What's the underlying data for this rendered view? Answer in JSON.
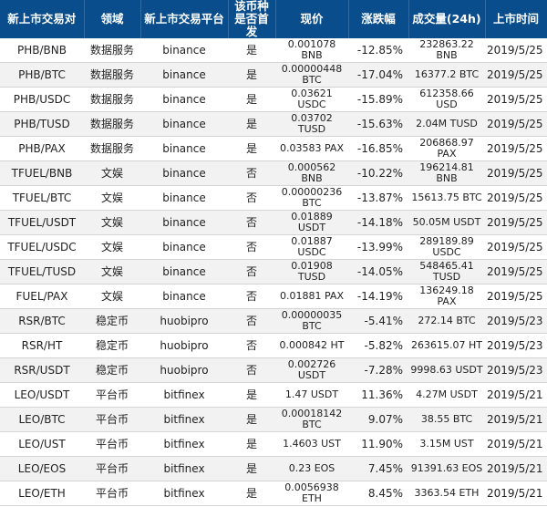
{
  "headers": {
    "pair": "新上市交易对",
    "domain": "领域",
    "platform": "新上市交易平台",
    "first": "该币种是否首发",
    "price": "现价",
    "change": "涨跌幅",
    "volume": "成交量(24h)",
    "date": "上市时间"
  },
  "rows": [
    {
      "pair": "PHB/BNB",
      "domain": "数据服务",
      "platform": "binance",
      "first": "是",
      "price": "0.001078 BNB",
      "change": "-12.85%",
      "volume": "232863.22 BNB",
      "date": "2019/5/25"
    },
    {
      "pair": "PHB/BTC",
      "domain": "数据服务",
      "platform": "binance",
      "first": "是",
      "price": "0.00000448 BTC",
      "change": "-17.04%",
      "volume": "16377.2 BTC",
      "date": "2019/5/25"
    },
    {
      "pair": "PHB/USDC",
      "domain": "数据服务",
      "platform": "binance",
      "first": "是",
      "price": "0.03621 USDC",
      "change": "-15.89%",
      "volume": "612358.66 USD",
      "date": "2019/5/25"
    },
    {
      "pair": "PHB/TUSD",
      "domain": "数据服务",
      "platform": "binance",
      "first": "是",
      "price": "0.03702 TUSD",
      "change": "-15.63%",
      "volume": "2.04M TUSD",
      "date": "2019/5/25"
    },
    {
      "pair": "PHB/PAX",
      "domain": "数据服务",
      "platform": "binance",
      "first": "是",
      "price": "0.03583 PAX",
      "change": "-16.85%",
      "volume": "206868.97 PAX",
      "date": "2019/5/25"
    },
    {
      "pair": "TFUEL/BNB",
      "domain": "文娱",
      "platform": "binance",
      "first": "否",
      "price": "0.000562 BNB",
      "change": "-10.22%",
      "volume": "196214.81 BNB",
      "date": "2019/5/25"
    },
    {
      "pair": "TFUEL/BTC",
      "domain": "文娱",
      "platform": "binance",
      "first": "否",
      "price": "0.00000236 BTC",
      "change": "-13.87%",
      "volume": "15613.75 BTC",
      "date": "2019/5/25"
    },
    {
      "pair": "TFUEL/USDT",
      "domain": "文娱",
      "platform": "binance",
      "first": "否",
      "price": "0.01889 USDT",
      "change": "-14.18%",
      "volume": "50.05M USDT",
      "date": "2019/5/25"
    },
    {
      "pair": "TFUEL/USDC",
      "domain": "文娱",
      "platform": "binance",
      "first": "否",
      "price": "0.01887 USDC",
      "change": "-13.99%",
      "volume": "289189.89 USDC",
      "date": "2019/5/25"
    },
    {
      "pair": "TFUEL/TUSD",
      "domain": "文娱",
      "platform": "binance",
      "first": "否",
      "price": "0.01908 TUSD",
      "change": "-14.05%",
      "volume": "548465.41 TUSD",
      "date": "2019/5/25"
    },
    {
      "pair": "FUEL/PAX",
      "domain": "文娱",
      "platform": "binance",
      "first": "否",
      "price": "0.01881 PAX",
      "change": "-14.19%",
      "volume": "136249.18 PAX",
      "date": "2019/5/25"
    },
    {
      "pair": "RSR/BTC",
      "domain": "稳定币",
      "platform": "huobipro",
      "first": "否",
      "price": "0.00000035 BTC",
      "change": "-5.41%",
      "volume": "272.14 BTC",
      "date": "2019/5/23"
    },
    {
      "pair": "RSR/HT",
      "domain": "稳定币",
      "platform": "huobipro",
      "first": "否",
      "price": "0.000842 HT",
      "change": "-5.82%",
      "volume": "263615.07 HT",
      "date": "2019/5/23"
    },
    {
      "pair": "RSR/USDT",
      "domain": "稳定币",
      "platform": "huobipro",
      "first": "否",
      "price": "0.002726 USDT",
      "change": "-7.28%",
      "volume": "9998.63 USDT",
      "date": "2019/5/23"
    },
    {
      "pair": "LEO/USDT",
      "domain": "平台币",
      "platform": "bitfinex",
      "first": "是",
      "price": "1.47 USDT",
      "change": "11.36%",
      "volume": "4.27M USDT",
      "date": "2019/5/21"
    },
    {
      "pair": "LEO/BTC",
      "domain": "平台币",
      "platform": "bitfinex",
      "first": "是",
      "price": "0.00018142 BTC",
      "change": "9.07%",
      "volume": "38.55 BTC",
      "date": "2019/5/21"
    },
    {
      "pair": "LEO/UST",
      "domain": "平台币",
      "platform": "bitfinex",
      "first": "是",
      "price": "1.4603 UST",
      "change": "11.90%",
      "volume": "3.15M UST",
      "date": "2019/5/21"
    },
    {
      "pair": "LEO/EOS",
      "domain": "平台币",
      "platform": "bitfinex",
      "first": "是",
      "price": "0.23 EOS",
      "change": "7.45%",
      "volume": "91391.63 EOS",
      "date": "2019/5/21"
    },
    {
      "pair": "LEO/ETH",
      "domain": "平台币",
      "platform": "bitfinex",
      "first": "是",
      "price": "0.0056938 ETH",
      "change": "8.45%",
      "volume": "3363.54 ETH",
      "date": "2019/5/21"
    }
  ]
}
